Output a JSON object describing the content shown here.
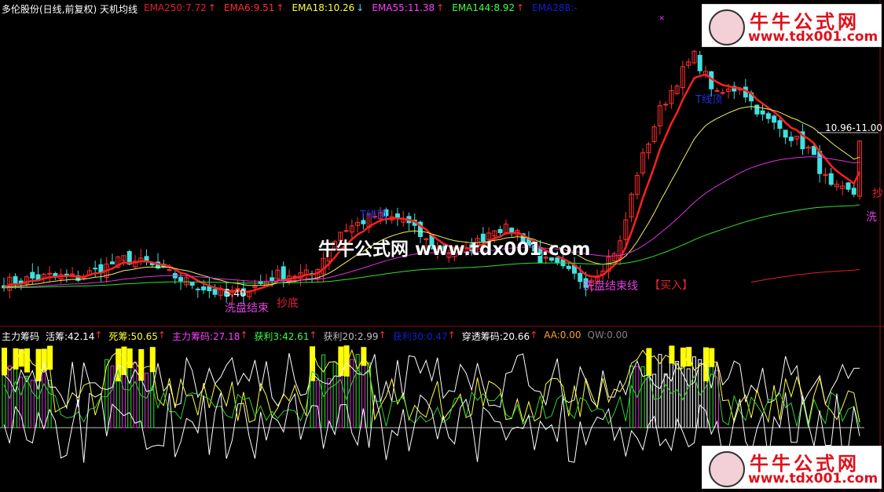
{
  "header": {
    "title": "多伦股份(日线,前复权) 天机均线",
    "items": [
      {
        "label": "EMA250:7.72",
        "color": "#e0202a",
        "arrow": "↑"
      },
      {
        "label": "EMA6:9.51",
        "color": "#ff3030",
        "arrow": "↑"
      },
      {
        "label": "EMA18:10.26",
        "color": "#ffff40",
        "arrow": "↓"
      },
      {
        "label": "EMA55:11.38",
        "color": "#ff40ff",
        "arrow": "↑"
      },
      {
        "label": "EMA144:8.92",
        "color": "#40ff40",
        "arrow": "↑"
      },
      {
        "label": "EMA288:-",
        "color": "#1020d0",
        "arrow": ""
      }
    ]
  },
  "indicator": {
    "title": "主力筹码",
    "items": [
      {
        "label": "活筹:42.14",
        "color": "#ffffff",
        "arrow": "↑"
      },
      {
        "label": "死筹:50.65",
        "color": "#ffff40",
        "arrow": "↑"
      },
      {
        "label": "主力筹码:27.18",
        "color": "#ff40ff",
        "arrow": "↑"
      },
      {
        "label": "获利3:42.61",
        "color": "#40ff40",
        "arrow": "↑"
      },
      {
        "label": "获利20:2.99",
        "color": "#c0c0c0",
        "arrow": "↑"
      },
      {
        "label": "获利30:0.47",
        "color": "#1020d0",
        "arrow": "↑"
      },
      {
        "label": "穿透筹码:20.66",
        "color": "#ffffff",
        "arrow": "↑"
      },
      {
        "label": "AA:0.00",
        "color": "#ffa030",
        "arrow": ""
      },
      {
        "label": "QW:0.00",
        "color": "#808080",
        "arrow": ""
      }
    ]
  },
  "annotations": {
    "low_price": "5.40",
    "wash_end_1": "洗盘结束",
    "bottom_buy": "抄底",
    "wash_end_line": "洗盘结束线",
    "buy": "【买入】",
    "range": "10.96-11.00",
    "wash_short": "洗",
    "bottom_short": "抄",
    "top_1": "T线顶",
    "top_2": "T线顶"
  },
  "watermark": {
    "site": "牛牛公式网",
    "url": "www.tdx001.com",
    "center": "牛牛公式网 www.tdx001.com"
  },
  "chart_data": {
    "type": "candlestick",
    "series_name": "多伦股份",
    "ema_periods": [
      6,
      18,
      55,
      144,
      250
    ],
    "bar_index": [
      0,
      8,
      13,
      21,
      25,
      31,
      39,
      44,
      48,
      54,
      59,
      65,
      70,
      76,
      81,
      86,
      90,
      94,
      98,
      102,
      104,
      108,
      111,
      115,
      119,
      121,
      125,
      129,
      133,
      137,
      141,
      145,
      149,
      150
    ],
    "close": [
      5.99,
      6.2,
      6.15,
      6.76,
      6.6,
      6.1,
      5.53,
      5.85,
      6.25,
      6.25,
      7.66,
      8.17,
      8.05,
      7.0,
      7.0,
      7.8,
      7.65,
      6.76,
      6.4,
      6.0,
      6.3,
      7.27,
      9.58,
      11.63,
      12.9,
      13.4,
      12.1,
      12.4,
      11.4,
      10.9,
      10.35,
      9.07,
      8.9,
      10.7
    ],
    "low_marker": 5.4,
    "up_color": "#ff3030",
    "down_color": "#40e0e0"
  }
}
